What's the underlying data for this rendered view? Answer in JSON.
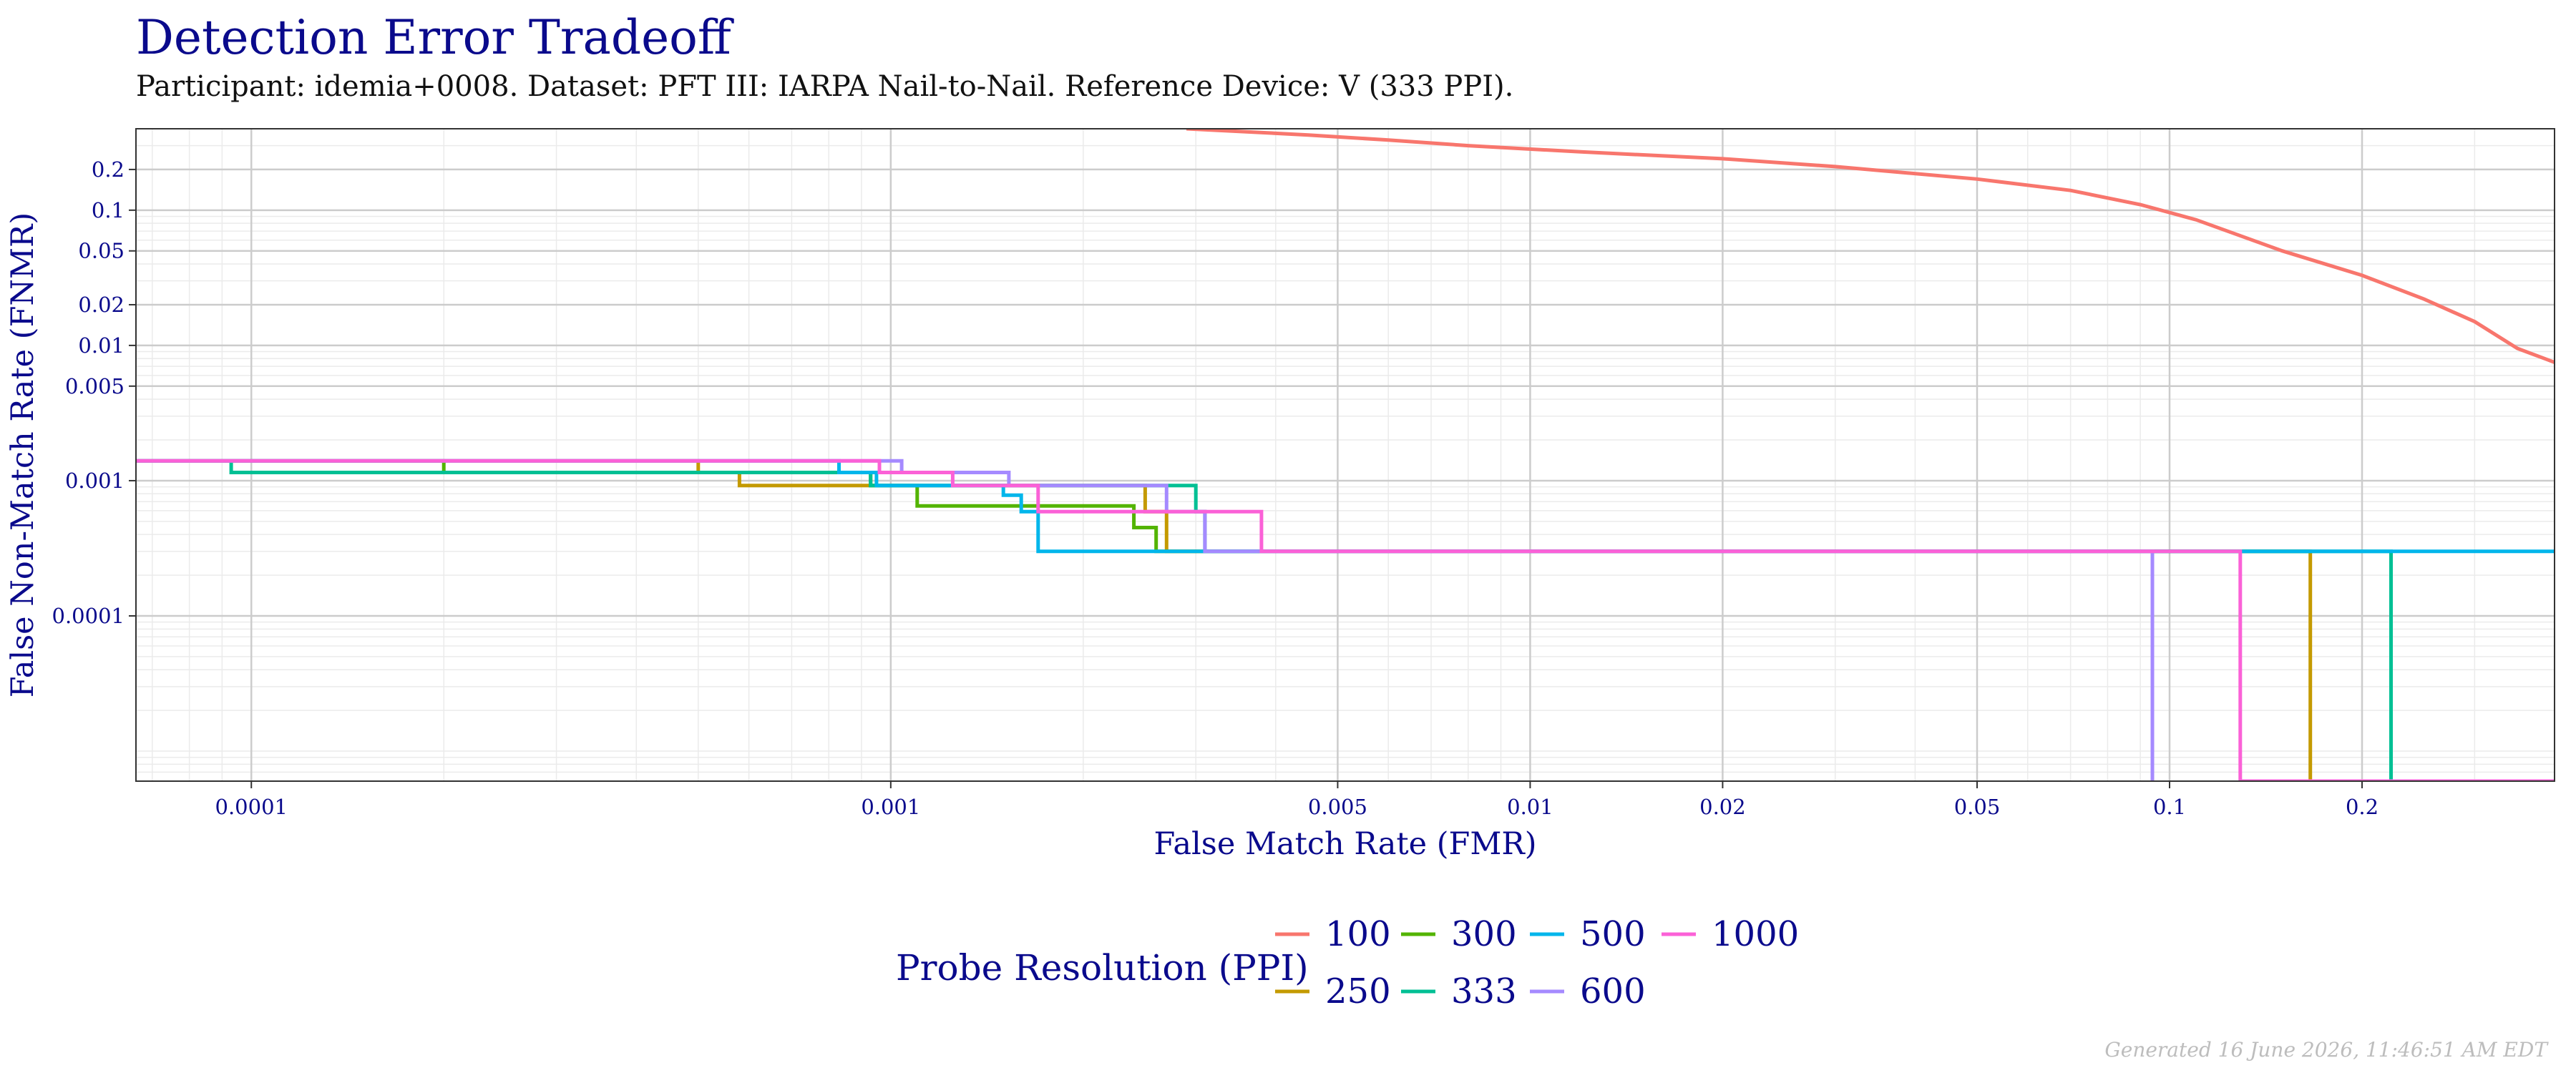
{
  "header": {
    "title": "Detection Error Tradeoff",
    "subtitle": "Participant: idemia+0008. Dataset: PFT III: IARPA Nail-to-Nail. Reference Device: V (333 PPI)."
  },
  "footer": {
    "generated": "Generated 16 June 2026, 11:46:51 AM EDT"
  },
  "colors": {
    "title": "#0a0a8c",
    "grid_major": "#cccccc",
    "grid_minor": "#ebebeb",
    "panel_border": "#333333"
  },
  "chart_data": {
    "type": "line",
    "title": "Detection Error Tradeoff",
    "xlabel": "False Match Rate (FMR)",
    "ylabel": "False Non-Match Rate (FNMR)",
    "x_scale": "log",
    "y_scale": "log",
    "xlim": [
      6.6e-05,
      0.4
    ],
    "ylim": [
      6e-06,
      0.4
    ],
    "x_ticks": [
      {
        "value": 0.0001,
        "label": "0.0001"
      },
      {
        "value": 0.001,
        "label": "0.001"
      },
      {
        "value": 0.005,
        "label": "0.005"
      },
      {
        "value": 0.01,
        "label": "0.01"
      },
      {
        "value": 0.02,
        "label": "0.02"
      },
      {
        "value": 0.05,
        "label": "0.05"
      },
      {
        "value": 0.1,
        "label": "0.1"
      },
      {
        "value": 0.2,
        "label": "0.2"
      }
    ],
    "y_ticks": [
      {
        "value": 0.0001,
        "label": "0.0001"
      },
      {
        "value": 0.001,
        "label": "0.001"
      },
      {
        "value": 0.005,
        "label": "0.005"
      },
      {
        "value": 0.01,
        "label": "0.01"
      },
      {
        "value": 0.02,
        "label": "0.02"
      },
      {
        "value": 0.05,
        "label": "0.05"
      },
      {
        "value": 0.1,
        "label": "0.1"
      },
      {
        "value": 0.2,
        "label": "0.2"
      }
    ],
    "grid": true,
    "legend": {
      "title": "Probe Resolution (PPI)",
      "position": "bottom",
      "columns": [
        [
          "100",
          "250"
        ],
        [
          "300",
          "333"
        ],
        [
          "500",
          "600"
        ],
        [
          "1000"
        ]
      ]
    },
    "series": [
      {
        "name": "100",
        "color": "#F8766D",
        "x": [
          0.0029,
          0.0045,
          0.006,
          0.008,
          0.012,
          0.02,
          0.03,
          0.05,
          0.07,
          0.09,
          0.11,
          0.15,
          0.2,
          0.25,
          0.3,
          0.35,
          0.4
        ],
        "y": [
          0.4,
          0.36,
          0.33,
          0.3,
          0.27,
          0.24,
          0.21,
          0.17,
          0.14,
          0.11,
          0.085,
          0.05,
          0.033,
          0.022,
          0.015,
          0.0095,
          0.0075
        ]
      },
      {
        "name": "250",
        "color": "#C49A00",
        "x": [
          6.6e-05,
          5e-05,
          0.0005,
          0.0005,
          0.00058,
          0.00058,
          0.0025,
          0.0025,
          0.0027,
          0.0027,
          0.166,
          0.166
        ],
        "y": [
          0.0014,
          0.0014,
          0.0014,
          0.00115,
          0.00115,
          0.00092,
          0.00092,
          0.00059,
          0.00059,
          0.0003,
          0.0003,
          6e-06
        ]
      },
      {
        "name": "300",
        "color": "#53B400",
        "x": [
          6.6e-05,
          0.0002,
          0.0002,
          0.00093,
          0.00093,
          0.0011,
          0.0011,
          0.0024,
          0.0024,
          0.0026,
          0.0026,
          0.166
        ],
        "y": [
          0.0014,
          0.0014,
          0.00115,
          0.00115,
          0.00092,
          0.00092,
          0.00065,
          0.00065,
          0.00045,
          0.00045,
          0.0003,
          0.0003
        ]
      },
      {
        "name": "333",
        "color": "#00C094",
        "x": [
          9.3e-05,
          9.3e-05,
          0.00093,
          0.00093,
          0.003,
          0.003,
          0.0031,
          0.0031,
          0.222,
          0.222
        ],
        "y": [
          0.0014,
          0.00115,
          0.00115,
          0.00092,
          0.00092,
          0.00059,
          0.00059,
          0.0003,
          0.0003,
          6e-06
        ]
      },
      {
        "name": "500",
        "color": "#00B6EB",
        "x": [
          6.6e-05,
          0.00083,
          0.00083,
          0.00095,
          0.00095,
          0.0015,
          0.0015,
          0.0016,
          0.0016,
          0.0017,
          0.0017,
          0.4
        ],
        "y": [
          0.0014,
          0.0014,
          0.00115,
          0.00115,
          0.00092,
          0.00092,
          0.00078,
          0.00078,
          0.00059,
          0.00059,
          0.0003,
          0.0003
        ]
      },
      {
        "name": "600",
        "color": "#A58AFF",
        "x": [
          6.6e-05,
          0.00104,
          0.00104,
          0.00153,
          0.00153,
          0.0027,
          0.0027,
          0.0031,
          0.0031,
          0.094,
          0.094
        ],
        "y": [
          0.0014,
          0.0014,
          0.00115,
          0.00115,
          0.00092,
          0.00092,
          0.00059,
          0.00059,
          0.0003,
          0.0003,
          6e-06
        ]
      },
      {
        "name": "1000",
        "color": "#FB61D7",
        "x": [
          6.6e-05,
          0.00096,
          0.00096,
          0.00125,
          0.00125,
          0.0017,
          0.0017,
          0.0038,
          0.0038,
          0.129,
          0.129,
          0.4
        ],
        "y": [
          0.0014,
          0.0014,
          0.00115,
          0.00115,
          0.00092,
          0.00092,
          0.00059,
          0.00059,
          0.0003,
          0.0003,
          6e-06,
          6e-06
        ]
      }
    ]
  }
}
